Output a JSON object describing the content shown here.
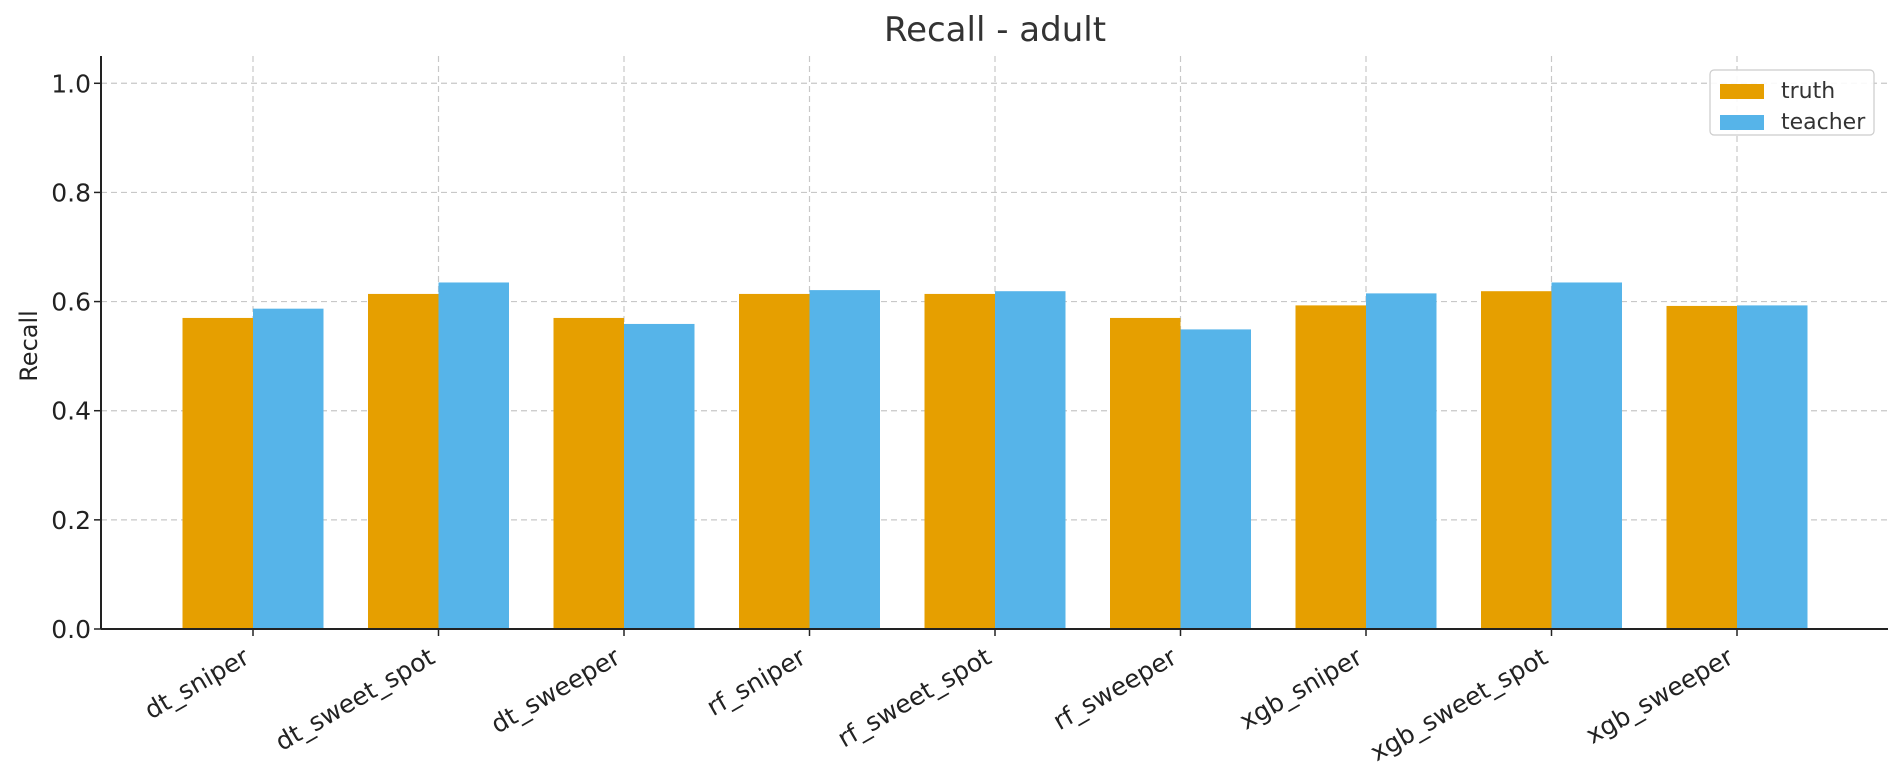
{
  "chart_data": {
    "type": "bar",
    "title": "Recall - adult",
    "xlabel": "",
    "ylabel": "Recall",
    "categories": [
      "dt_sniper",
      "dt_sweet_spot",
      "dt_sweeper",
      "rf_sniper",
      "rf_sweet_spot",
      "rf_sweeper",
      "xgb_sniper",
      "xgb_sweet_spot",
      "xgb_sweeper"
    ],
    "series": [
      {
        "name": "truth",
        "color": "#E69F00",
        "values": [
          0.57,
          0.614,
          0.57,
          0.614,
          0.614,
          0.57,
          0.593,
          0.619,
          0.592
        ]
      },
      {
        "name": "teacher",
        "color": "#56B4E9",
        "values": [
          0.587,
          0.635,
          0.559,
          0.621,
          0.619,
          0.549,
          0.615,
          0.635,
          0.593
        ]
      }
    ],
    "ylim": [
      0,
      1.05
    ],
    "yticks": [
      "0.0",
      "0.2",
      "0.4",
      "0.6",
      "0.8",
      "1.0"
    ],
    "grid": true,
    "legend_position": "top-right"
  }
}
